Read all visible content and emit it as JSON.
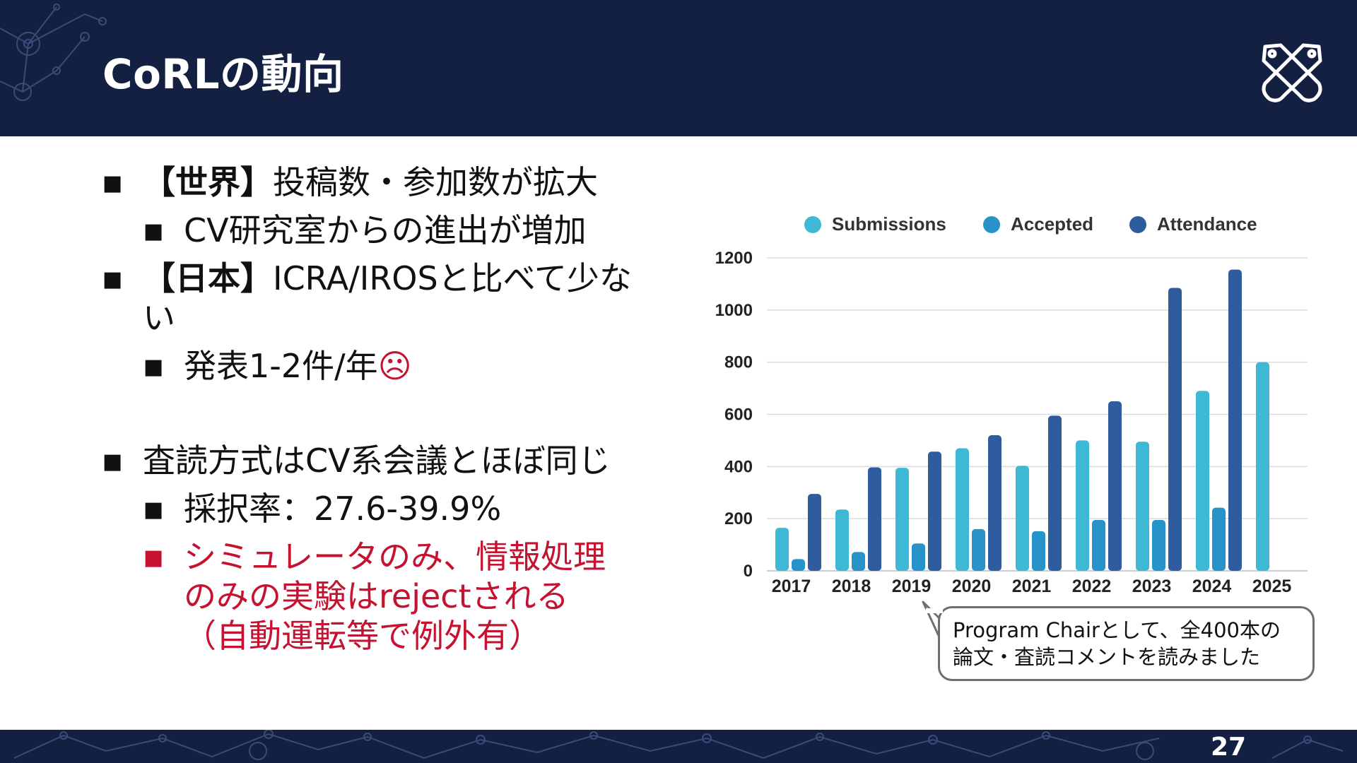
{
  "slide": {
    "title": "CoRLの動向",
    "page_number": "27"
  },
  "bullets": [
    {
      "level": 1,
      "bold": "【世界】",
      "text": "投稿数・参加数が拡大"
    },
    {
      "level": 2,
      "text": "CV研究室からの進出が増加"
    },
    {
      "level": 1,
      "bold": "【日本】",
      "text": "ICRA/IROSと比べて少ない"
    },
    {
      "level": 2,
      "text": "発表1-2件/年",
      "emoji": "☹"
    },
    {
      "level": 1,
      "text": "査読方式はCV系会議とほぼ同じ"
    },
    {
      "level": 2,
      "text": "採択率：27.6-39.9%"
    },
    {
      "level": 2,
      "text": "シミュレータのみ、情報処理のみの実験はrejectされる（自動運転等で例外有）"
    }
  ],
  "callout": {
    "line1": "Program Chairとして、全400本の",
    "line2": "論文・査読コメントを読みました"
  },
  "colors": {
    "header_bg": "#142042",
    "accent_red": "#c41230",
    "submissions": "#3db9d6",
    "accepted": "#2893c9",
    "attendance": "#2f5c9e"
  },
  "chart_data": {
    "type": "bar",
    "categories": [
      "2017",
      "2018",
      "2019",
      "2020",
      "2021",
      "2022",
      "2023",
      "2024",
      "2025"
    ],
    "series": [
      {
        "name": "Submissions",
        "values": [
          165,
          235,
          395,
          470,
          403,
          500,
          495,
          690,
          800
        ]
      },
      {
        "name": "Accepted",
        "values": [
          45,
          72,
          105,
          160,
          152,
          195,
          195,
          242,
          null
        ]
      },
      {
        "name": "Attendance",
        "values": [
          295,
          397,
          457,
          520,
          595,
          650,
          1085,
          1155,
          null
        ]
      }
    ],
    "yticks": [
      0,
      200,
      400,
      600,
      800,
      1000,
      1200
    ],
    "ylim": [
      0,
      1200
    ],
    "grid": true,
    "legend_position": "top"
  }
}
